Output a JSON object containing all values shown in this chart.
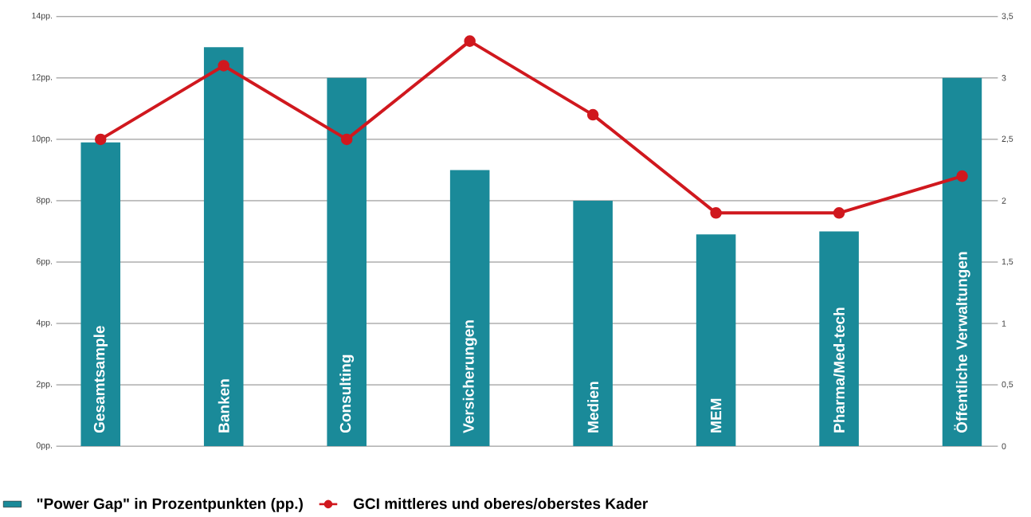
{
  "chart_data": {
    "type": "bar",
    "categories": [
      "Gesamtsample",
      "Banken",
      "Consulting",
      "Versicherungen",
      "Medien",
      "MEM",
      "Pharma/Med-tech",
      "Öffentliche Verwaltungen"
    ],
    "series": [
      {
        "name": "\"Power Gap\" in Prozentpunkten (pp.)",
        "color": "#1a8a99",
        "values": [
          9.9,
          13,
          12,
          9,
          8,
          6.9,
          7,
          12
        ]
      },
      {
        "name": "GCI mittleres und oberes/oberstes Kader",
        "type": "line",
        "axis": "y2",
        "color": "#d0181e",
        "marker": "circle",
        "values": [
          2.5,
          3.1,
          2.5,
          3.3,
          2.7,
          1.9,
          1.9,
          2.2
        ]
      }
    ],
    "ylim": [
      0,
      14
    ],
    "yticks": [
      {
        "value": 0,
        "label": "0pp."
      },
      {
        "value": 2,
        "label": "2pp."
      },
      {
        "value": 4,
        "label": "4pp."
      },
      {
        "value": 6,
        "label": "6pp."
      },
      {
        "value": 8,
        "label": "8pp."
      },
      {
        "value": 10,
        "label": "10pp."
      },
      {
        "value": 12,
        "label": "12pp."
      },
      {
        "value": 14,
        "label": "14pp."
      }
    ],
    "y2lim": [
      0,
      3.5
    ],
    "y2ticks": [
      0,
      {
        "value": 0.5,
        "label": "0,5"
      },
      1,
      {
        "value": 1.5,
        "label": "1,5"
      },
      2,
      {
        "value": 2.5,
        "label": "2,5"
      },
      3,
      {
        "value": 3.5,
        "label": "3,5"
      }
    ],
    "grid": "y",
    "legend": "bottom left"
  }
}
